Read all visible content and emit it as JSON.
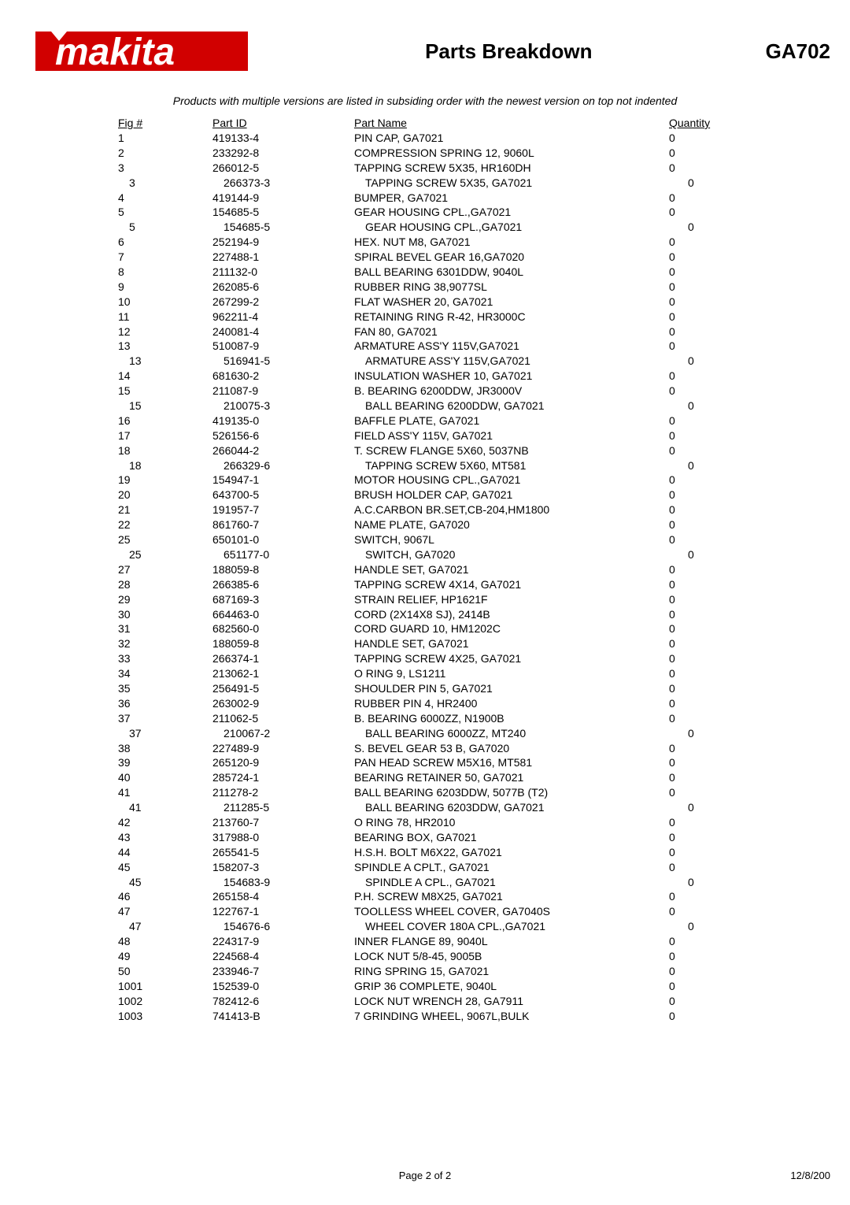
{
  "header": {
    "title": "Parts Breakdown",
    "model": "GA702",
    "logo_color": "#d10000",
    "logo_text": "makita",
    "logo_reg": "®"
  },
  "note": "Products with multiple versions are listed in subsiding order with the newest version on top not indented",
  "columns": {
    "fig": "Fig #",
    "partid": "Part ID",
    "partname": "Part Name",
    "qty": "Quantity"
  },
  "rows": [
    {
      "fig": "1",
      "partid": "419133-4",
      "partname": "PIN CAP, GA7021",
      "qty": "0",
      "indented": false
    },
    {
      "fig": "2",
      "partid": "233292-8",
      "partname": "COMPRESSION SPRING 12, 9060L",
      "qty": "0",
      "indented": false
    },
    {
      "fig": "3",
      "partid": "266012-5",
      "partname": "TAPPING SCREW 5X35, HR160DH",
      "qty": "0",
      "indented": false
    },
    {
      "fig": "3",
      "partid": "266373-3",
      "partname": "TAPPING SCREW 5X35, GA7021",
      "qty": "0",
      "indented": true
    },
    {
      "fig": "4",
      "partid": "419144-9",
      "partname": "BUMPER, GA7021",
      "qty": "0",
      "indented": false
    },
    {
      "fig": "5",
      "partid": "154685-5",
      "partname": "GEAR HOUSING CPL.,GA7021",
      "qty": "0",
      "indented": false
    },
    {
      "fig": "5",
      "partid": "154685-5",
      "partname": "GEAR HOUSING CPL.,GA7021",
      "qty": "0",
      "indented": true
    },
    {
      "fig": "6",
      "partid": "252194-9",
      "partname": "HEX. NUT M8, GA7021",
      "qty": "0",
      "indented": false
    },
    {
      "fig": "7",
      "partid": "227488-1",
      "partname": "SPIRAL BEVEL GEAR 16,GA7020",
      "qty": "0",
      "indented": false
    },
    {
      "fig": "8",
      "partid": "211132-0",
      "partname": "BALL BEARING 6301DDW, 9040L",
      "qty": "0",
      "indented": false
    },
    {
      "fig": "9",
      "partid": "262085-6",
      "partname": "RUBBER RING 38,9077SL",
      "qty": "0",
      "indented": false
    },
    {
      "fig": "10",
      "partid": "267299-2",
      "partname": "FLAT WASHER 20, GA7021",
      "qty": "0",
      "indented": false
    },
    {
      "fig": "11",
      "partid": "962211-4",
      "partname": "RETAINING RING R-42, HR3000C",
      "qty": "0",
      "indented": false
    },
    {
      "fig": "12",
      "partid": "240081-4",
      "partname": "FAN 80, GA7021",
      "qty": "0",
      "indented": false
    },
    {
      "fig": "13",
      "partid": "510087-9",
      "partname": "ARMATURE ASS'Y 115V,GA7021",
      "qty": "0",
      "indented": false
    },
    {
      "fig": "13",
      "partid": "516941-5",
      "partname": "ARMATURE ASS'Y 115V,GA7021",
      "qty": "0",
      "indented": true
    },
    {
      "fig": "14",
      "partid": "681630-2",
      "partname": "INSULATION WASHER 10, GA7021",
      "qty": "0",
      "indented": false
    },
    {
      "fig": "15",
      "partid": "211087-9",
      "partname": "B. BEARING 6200DDW, JR3000V",
      "qty": "0",
      "indented": false
    },
    {
      "fig": "15",
      "partid": "210075-3",
      "partname": "BALL BEARING 6200DDW, GA7021",
      "qty": "0",
      "indented": true
    },
    {
      "fig": "16",
      "partid": "419135-0",
      "partname": "BAFFLE PLATE, GA7021",
      "qty": "0",
      "indented": false
    },
    {
      "fig": "17",
      "partid": "526156-6",
      "partname": "FIELD ASS'Y 115V, GA7021",
      "qty": "0",
      "indented": false
    },
    {
      "fig": "18",
      "partid": "266044-2",
      "partname": "T. SCREW FLANGE 5X60, 5037NB",
      "qty": "0",
      "indented": false
    },
    {
      "fig": "18",
      "partid": "266329-6",
      "partname": "TAPPING SCREW 5X60, MT581",
      "qty": "0",
      "indented": true
    },
    {
      "fig": "19",
      "partid": "154947-1",
      "partname": "MOTOR HOUSING CPL.,GA7021",
      "qty": "0",
      "indented": false
    },
    {
      "fig": "20",
      "partid": "643700-5",
      "partname": "BRUSH HOLDER CAP, GA7021",
      "qty": "0",
      "indented": false
    },
    {
      "fig": "21",
      "partid": "191957-7",
      "partname": "A.C.CARBON BR.SET,CB-204,HM1800",
      "qty": "0",
      "indented": false
    },
    {
      "fig": "22",
      "partid": "861760-7",
      "partname": "NAME PLATE, GA7020",
      "qty": "0",
      "indented": false
    },
    {
      "fig": "25",
      "partid": "650101-0",
      "partname": "SWITCH, 9067L",
      "qty": "0",
      "indented": false
    },
    {
      "fig": "25",
      "partid": "651177-0",
      "partname": "SWITCH, GA7020",
      "qty": "0",
      "indented": true
    },
    {
      "fig": "27",
      "partid": "188059-8",
      "partname": "HANDLE SET, GA7021",
      "qty": "0",
      "indented": false
    },
    {
      "fig": "28",
      "partid": "266385-6",
      "partname": "TAPPING SCREW 4X14, GA7021",
      "qty": "0",
      "indented": false
    },
    {
      "fig": "29",
      "partid": "687169-3",
      "partname": "STRAIN RELIEF, HP1621F",
      "qty": "0",
      "indented": false
    },
    {
      "fig": "30",
      "partid": "664463-0",
      "partname": "CORD (2X14X8 SJ), 2414B",
      "qty": "0",
      "indented": false
    },
    {
      "fig": "31",
      "partid": "682560-0",
      "partname": "CORD GUARD 10, HM1202C",
      "qty": "0",
      "indented": false
    },
    {
      "fig": "32",
      "partid": "188059-8",
      "partname": "HANDLE SET, GA7021",
      "qty": "0",
      "indented": false
    },
    {
      "fig": "33",
      "partid": "266374-1",
      "partname": "TAPPING SCREW 4X25, GA7021",
      "qty": "0",
      "indented": false
    },
    {
      "fig": "34",
      "partid": "213062-1",
      "partname": "O RING 9, LS1211",
      "qty": "0",
      "indented": false
    },
    {
      "fig": "35",
      "partid": "256491-5",
      "partname": "SHOULDER PIN 5, GA7021",
      "qty": "0",
      "indented": false
    },
    {
      "fig": "36",
      "partid": "263002-9",
      "partname": "RUBBER PIN 4, HR2400",
      "qty": "0",
      "indented": false
    },
    {
      "fig": "37",
      "partid": "211062-5",
      "partname": "B. BEARING 6000ZZ, N1900B",
      "qty": "0",
      "indented": false
    },
    {
      "fig": "37",
      "partid": "210067-2",
      "partname": "BALL BEARING 6000ZZ, MT240",
      "qty": "0",
      "indented": true
    },
    {
      "fig": "38",
      "partid": "227489-9",
      "partname": "S. BEVEL GEAR 53 B, GA7020",
      "qty": "0",
      "indented": false
    },
    {
      "fig": "39",
      "partid": "265120-9",
      "partname": "PAN HEAD SCREW M5X16, MT581",
      "qty": "0",
      "indented": false
    },
    {
      "fig": "40",
      "partid": "285724-1",
      "partname": "BEARING RETAINER 50, GA7021",
      "qty": "0",
      "indented": false
    },
    {
      "fig": "41",
      "partid": "211278-2",
      "partname": "BALL BEARING 6203DDW, 5077B (T2)",
      "qty": "0",
      "indented": false
    },
    {
      "fig": "41",
      "partid": "211285-5",
      "partname": "BALL BEARING 6203DDW, GA7021",
      "qty": "0",
      "indented": true
    },
    {
      "fig": "42",
      "partid": "213760-7",
      "partname": "O RING 78, HR2010",
      "qty": "0",
      "indented": false
    },
    {
      "fig": "43",
      "partid": "317988-0",
      "partname": "BEARING BOX, GA7021",
      "qty": "0",
      "indented": false
    },
    {
      "fig": "44",
      "partid": "265541-5",
      "partname": "H.S.H. BOLT M6X22, GA7021",
      "qty": "0",
      "indented": false
    },
    {
      "fig": "45",
      "partid": "158207-3",
      "partname": "SPINDLE A CPLT., GA7021",
      "qty": "0",
      "indented": false
    },
    {
      "fig": "45",
      "partid": "154683-9",
      "partname": "SPINDLE A CPL., GA7021",
      "qty": "0",
      "indented": true
    },
    {
      "fig": "46",
      "partid": "265158-4",
      "partname": "P.H. SCREW M8X25, GA7021",
      "qty": "0",
      "indented": false
    },
    {
      "fig": "47",
      "partid": "122767-1",
      "partname": "TOOLLESS WHEEL COVER, GA7040S",
      "qty": "0",
      "indented": false
    },
    {
      "fig": "47",
      "partid": "154676-6",
      "partname": "WHEEL COVER 180A CPL.,GA7021",
      "qty": "0",
      "indented": true
    },
    {
      "fig": "48",
      "partid": "224317-9",
      "partname": "INNER FLANGE 89, 9040L",
      "qty": "0",
      "indented": false
    },
    {
      "fig": "49",
      "partid": "224568-4",
      "partname": "LOCK NUT 5/8-45, 9005B",
      "qty": "0",
      "indented": false
    },
    {
      "fig": "50",
      "partid": "233946-7",
      "partname": "RING SPRING 15, GA7021",
      "qty": "0",
      "indented": false
    },
    {
      "fig": "1001",
      "partid": "152539-0",
      "partname": "GRIP 36 COMPLETE, 9040L",
      "qty": "0",
      "indented": false
    },
    {
      "fig": "1002",
      "partid": "782412-6",
      "partname": "LOCK NUT WRENCH 28, GA7911",
      "qty": "0",
      "indented": false
    },
    {
      "fig": "1003",
      "partid": "741413-B",
      "partname": "7 GRINDING WHEEL, 9067L,BULK",
      "qty": "0",
      "indented": false
    }
  ],
  "footer": {
    "page": "Page 2 of 2",
    "date": "12/8/200"
  }
}
